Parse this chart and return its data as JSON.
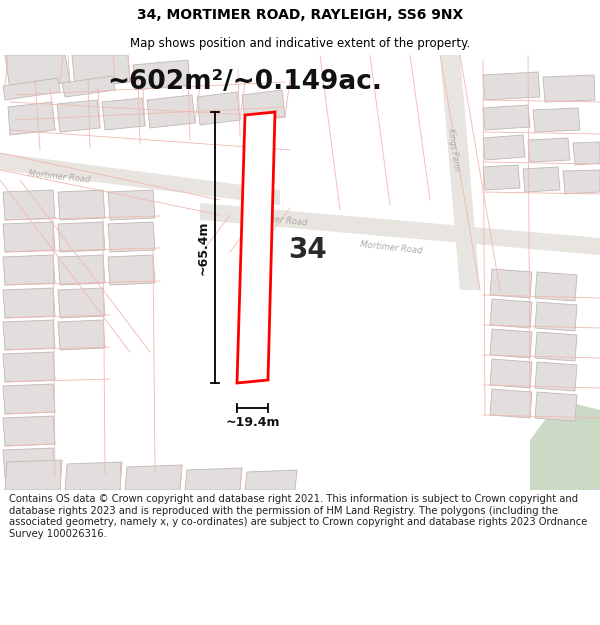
{
  "title": "34, MORTIMER ROAD, RAYLEIGH, SS6 9NX",
  "subtitle": "Map shows position and indicative extent of the property.",
  "area_text": "~602m²/~0.149ac.",
  "width_label": "~19.4m",
  "height_label": "~65.4m",
  "number_label": "34",
  "footer_text": "Contains OS data © Crown copyright and database right 2021. This information is subject to Crown copyright and database rights 2023 and is reproduced with the permission of HM Land Registry. The polygons (including the associated geometry, namely x, y co-ordinates) are subject to Crown copyright and database rights 2023 Ordnance Survey 100026316.",
  "bg_color": "#f7f4f2",
  "map_bg": "#f7f4f2",
  "road_fill": "#e8e4e0",
  "building_fill": "#e2dedd",
  "building_edge": "#c0b8b4",
  "highlight_fill": "#ffffff",
  "highlight_edge": "#ff0000",
  "cadastral_color": "#f0b8b0",
  "road_label_color": "#b0a8a4",
  "green_fill": "#ccd9c4",
  "title_fontsize": 10,
  "subtitle_fontsize": 8.5,
  "area_fontsize": 19,
  "footer_fontsize": 7.2
}
